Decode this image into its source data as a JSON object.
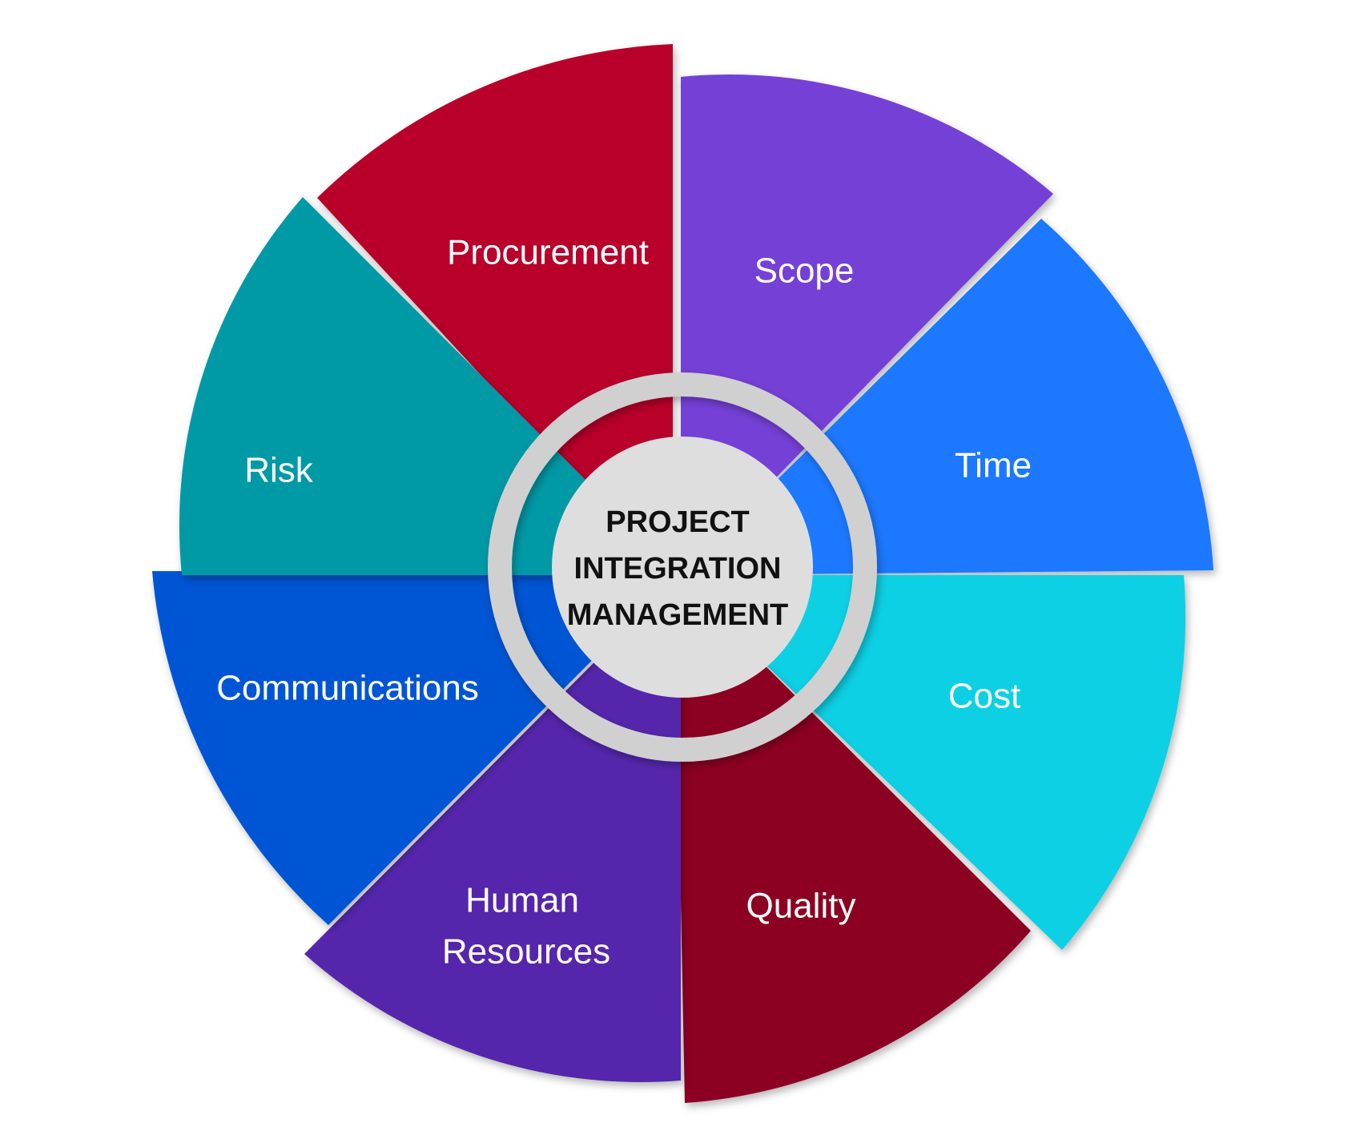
{
  "center": {
    "lines": [
      "PROJECT",
      "INTEGRATION",
      "MANAGEMENT"
    ],
    "fill": "#dedede",
    "ring_color": "#d0d0d0"
  },
  "segments": [
    {
      "id": "procurement",
      "lines": [
        "Procurement"
      ],
      "color": "#b8002a"
    },
    {
      "id": "scope",
      "lines": [
        "Scope"
      ],
      "color": "#7440d6"
    },
    {
      "id": "time",
      "lines": [
        "Time"
      ],
      "color": "#1a78ff"
    },
    {
      "id": "cost",
      "lines": [
        "Cost"
      ],
      "color": "#08d0e4"
    },
    {
      "id": "quality",
      "lines": [
        "Quality"
      ],
      "color": "#8c0020"
    },
    {
      "id": "human-resources",
      "lines": [
        "Human",
        "Resources"
      ],
      "color": "#5526ac"
    },
    {
      "id": "communications",
      "lines": [
        "Communications"
      ],
      "color": "#0055d4"
    },
    {
      "id": "risk",
      "lines": [
        "Risk"
      ],
      "color": "#0599a6"
    }
  ]
}
